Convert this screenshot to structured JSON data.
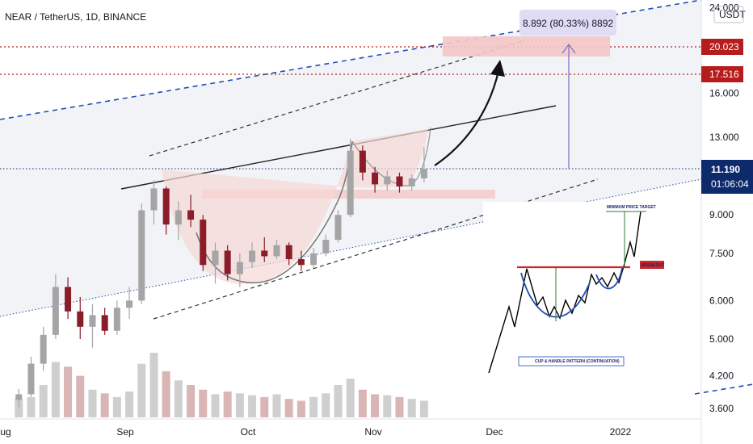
{
  "chart_data": {
    "type": "candlestick",
    "title": "NEAR / TetherUS, 1D, BINANCE",
    "quote_currency": "USDT",
    "price_axis": {
      "scale": "log",
      "ticks": [
        "3.600",
        "4.200",
        "5.000",
        "6.000",
        "7.500",
        "9.000",
        "13.000",
        "16.000",
        "24.000"
      ]
    },
    "time_axis": {
      "ticks": [
        "Aug",
        "Sep",
        "Oct",
        "Nov",
        "Dec",
        "2022"
      ]
    },
    "current_price": {
      "value": "11.190",
      "countdown": "01:06:04",
      "color": "#0d2b6b"
    },
    "price_levels": [
      {
        "value": "20.023",
        "color": "#b71c1c",
        "style": "dotted"
      },
      {
        "value": "17.516",
        "color": "#b71c1c",
        "style": "dotted"
      }
    ],
    "measure_label": "8.892 (80.33%) 8892",
    "colors": {
      "up": "#a5a5a5",
      "down": "#8b1c2a",
      "cup_fill": "#f6d7d7",
      "channel": "#1e4fb5",
      "measure": "#7c6fc0"
    },
    "candles": [
      {
        "x": "2021-08-06",
        "o": 3.75,
        "h": 3.95,
        "l": 3.62,
        "c": 3.85
      },
      {
        "x": "2021-08-09",
        "o": 3.85,
        "h": 4.6,
        "l": 3.8,
        "c": 4.45
      },
      {
        "x": "2021-08-12",
        "o": 4.45,
        "h": 5.3,
        "l": 4.3,
        "c": 5.1
      },
      {
        "x": "2021-08-15",
        "o": 5.1,
        "h": 6.8,
        "l": 5.0,
        "c": 6.4
      },
      {
        "x": "2021-08-18",
        "o": 6.4,
        "h": 6.7,
        "l": 5.5,
        "c": 5.7
      },
      {
        "x": "2021-08-21",
        "o": 5.7,
        "h": 6.1,
        "l": 5.0,
        "c": 5.3
      },
      {
        "x": "2021-08-24",
        "o": 5.3,
        "h": 5.9,
        "l": 4.8,
        "c": 5.6
      },
      {
        "x": "2021-08-27",
        "o": 5.6,
        "h": 5.8,
        "l": 5.1,
        "c": 5.2
      },
      {
        "x": "2021-08-30",
        "o": 5.2,
        "h": 6.0,
        "l": 5.1,
        "c": 5.8
      },
      {
        "x": "2021-09-02",
        "o": 5.8,
        "h": 6.4,
        "l": 5.5,
        "c": 6.0
      },
      {
        "x": "2021-09-05",
        "o": 6.0,
        "h": 9.5,
        "l": 5.9,
        "c": 9.2
      },
      {
        "x": "2021-09-08",
        "o": 9.2,
        "h": 10.6,
        "l": 8.6,
        "c": 10.2
      },
      {
        "x": "2021-09-11",
        "o": 10.2,
        "h": 10.3,
        "l": 8.2,
        "c": 8.6
      },
      {
        "x": "2021-09-14",
        "o": 8.6,
        "h": 9.6,
        "l": 8.0,
        "c": 9.2
      },
      {
        "x": "2021-09-17",
        "o": 9.2,
        "h": 9.9,
        "l": 8.5,
        "c": 8.8
      },
      {
        "x": "2021-09-20",
        "o": 8.8,
        "h": 9.0,
        "l": 6.9,
        "c": 7.1
      },
      {
        "x": "2021-09-23",
        "o": 7.1,
        "h": 7.9,
        "l": 6.5,
        "c": 7.6
      },
      {
        "x": "2021-09-26",
        "o": 7.6,
        "h": 7.8,
        "l": 6.6,
        "c": 6.8
      },
      {
        "x": "2021-09-29",
        "o": 6.8,
        "h": 7.5,
        "l": 6.4,
        "c": 7.2
      },
      {
        "x": "2021-10-02",
        "o": 7.2,
        "h": 7.9,
        "l": 7.0,
        "c": 7.6
      },
      {
        "x": "2021-10-05",
        "o": 7.6,
        "h": 8.1,
        "l": 7.2,
        "c": 7.4
      },
      {
        "x": "2021-10-08",
        "o": 7.4,
        "h": 8.0,
        "l": 7.3,
        "c": 7.8
      },
      {
        "x": "2021-10-11",
        "o": 7.8,
        "h": 7.9,
        "l": 7.1,
        "c": 7.3
      },
      {
        "x": "2021-10-14",
        "o": 7.3,
        "h": 7.6,
        "l": 6.9,
        "c": 7.1
      },
      {
        "x": "2021-10-17",
        "o": 7.1,
        "h": 7.7,
        "l": 7.0,
        "c": 7.5
      },
      {
        "x": "2021-10-20",
        "o": 7.5,
        "h": 8.2,
        "l": 7.4,
        "c": 8.0
      },
      {
        "x": "2021-10-23",
        "o": 8.0,
        "h": 9.2,
        "l": 7.9,
        "c": 9.0
      },
      {
        "x": "2021-10-26",
        "o": 9.0,
        "h": 12.9,
        "l": 8.9,
        "c": 12.2
      },
      {
        "x": "2021-10-29",
        "o": 12.2,
        "h": 12.5,
        "l": 10.6,
        "c": 11.0
      },
      {
        "x": "2021-11-01",
        "o": 11.0,
        "h": 11.3,
        "l": 10.0,
        "c": 10.4
      },
      {
        "x": "2021-11-04",
        "o": 10.4,
        "h": 11.1,
        "l": 10.1,
        "c": 10.8
      },
      {
        "x": "2021-11-07",
        "o": 10.8,
        "h": 11.0,
        "l": 10.0,
        "c": 10.3
      },
      {
        "x": "2021-11-10",
        "o": 10.3,
        "h": 10.9,
        "l": 10.1,
        "c": 10.7
      },
      {
        "x": "2021-11-13",
        "o": 10.7,
        "h": 12.4,
        "l": 10.5,
        "c": 11.19
      }
    ],
    "volume": [
      20,
      22,
      35,
      60,
      55,
      45,
      30,
      26,
      22,
      28,
      58,
      70,
      50,
      40,
      35,
      30,
      25,
      28,
      26,
      24,
      22,
      25,
      20,
      18,
      22,
      26,
      35,
      42,
      30,
      25,
      24,
      22,
      20,
      18
    ]
  },
  "inset": {
    "caption": "CUP & HANDLE PATTERN (CONTINUATION)",
    "target_label": "MINIMUM PRICE TARGET",
    "breakout_label": "BREAKOUT"
  }
}
